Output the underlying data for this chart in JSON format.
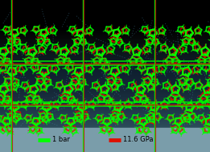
{
  "green_color": "#00ff00",
  "red_color": "#dd1100",
  "hbond_color": "#4488aa",
  "legend_bg": "#7a9daa",
  "legend1_label": "1 bar",
  "legend2_label": "11.6 GPa",
  "grid_green": "#00ee00",
  "grid_red": "#cc1100",
  "figsize": [
    2.61,
    1.89
  ],
  "dpi": 100,
  "bg_grad": [
    [
      0.0,
      "#000000"
    ],
    [
      0.08,
      "#050808"
    ],
    [
      0.18,
      "#0a1518"
    ],
    [
      0.35,
      "#0f2030"
    ],
    [
      0.5,
      "#152838"
    ],
    [
      0.65,
      "#1e3848"
    ],
    [
      0.78,
      "#2a4a58"
    ],
    [
      0.88,
      "#3a5a68"
    ],
    [
      1.0,
      "#445a60"
    ]
  ]
}
